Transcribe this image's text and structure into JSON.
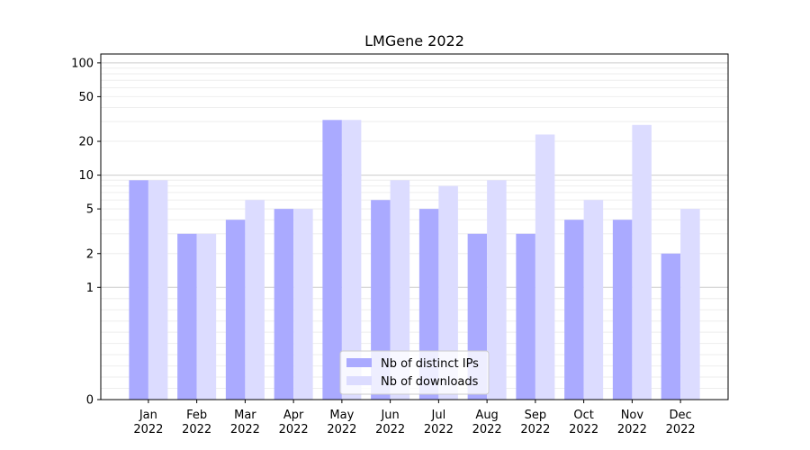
{
  "chart_data": {
    "type": "bar",
    "title": "LMGene 2022",
    "xlabel": "",
    "ylabel": "",
    "yscale": "symlog",
    "ylim": [
      0,
      120
    ],
    "yticks": [
      0,
      1,
      2,
      5,
      10,
      20,
      50,
      100
    ],
    "grid": "horizontal",
    "legend_position": "bottom-center",
    "categories": [
      {
        "month": "Jan",
        "year": "2022"
      },
      {
        "month": "Feb",
        "year": "2022"
      },
      {
        "month": "Mar",
        "year": "2022"
      },
      {
        "month": "Apr",
        "year": "2022"
      },
      {
        "month": "May",
        "year": "2022"
      },
      {
        "month": "Jun",
        "year": "2022"
      },
      {
        "month": "Jul",
        "year": "2022"
      },
      {
        "month": "Aug",
        "year": "2022"
      },
      {
        "month": "Sep",
        "year": "2022"
      },
      {
        "month": "Oct",
        "year": "2022"
      },
      {
        "month": "Nov",
        "year": "2022"
      },
      {
        "month": "Dec",
        "year": "2022"
      }
    ],
    "series": [
      {
        "name": "Nb of distinct IPs",
        "color": "#aaaaff",
        "values": [
          9,
          3,
          4,
          5,
          31,
          6,
          5,
          3,
          3,
          4,
          4,
          2
        ]
      },
      {
        "name": "Nb of downloads",
        "color": "#dcdcff",
        "values": [
          9,
          3,
          6,
          5,
          31,
          9,
          8,
          9,
          23,
          6,
          28,
          5
        ]
      }
    ]
  }
}
